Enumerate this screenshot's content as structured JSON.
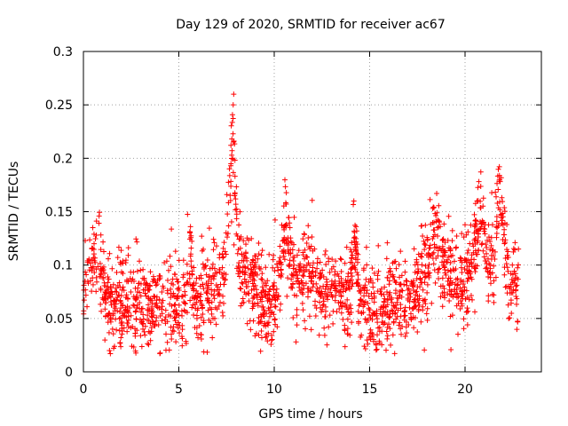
{
  "chart_data": {
    "type": "scatter",
    "title": "Day 129 of 2020, SRMTID for receiver ac67",
    "xlabel": "GPS time / hours",
    "ylabel": "SRMTID / TECUs",
    "xlim": [
      0,
      24
    ],
    "ylim": [
      0,
      0.3
    ],
    "x_ticks": [
      0,
      5,
      10,
      15,
      20
    ],
    "x_tick_labels": [
      "0",
      "5",
      "10",
      "15",
      "20"
    ],
    "y_ticks": [
      0,
      0.05,
      0.1,
      0.15,
      0.2,
      0.25,
      0.3
    ],
    "y_tick_labels": [
      "0",
      "0.05",
      "0.1",
      "0.15",
      "0.2",
      "0.25",
      "0.3"
    ],
    "grid": true,
    "marker": "+",
    "color": "#ff0000",
    "x_range_of_data": [
      0,
      22.8
    ],
    "point_count": 2100,
    "random_seed": 129,
    "baseline_levels": [
      [
        0.0,
        0.085
      ],
      [
        0.5,
        0.085
      ],
      [
        1.0,
        0.068
      ],
      [
        2.0,
        0.06
      ],
      [
        3.0,
        0.062
      ],
      [
        4.0,
        0.062
      ],
      [
        5.0,
        0.06
      ],
      [
        5.8,
        0.05
      ],
      [
        6.5,
        0.075
      ],
      [
        7.3,
        0.09
      ],
      [
        8.0,
        0.1
      ],
      [
        9.0,
        0.085
      ],
      [
        9.6,
        0.06
      ],
      [
        10.5,
        0.085
      ],
      [
        11.5,
        0.08
      ],
      [
        12.5,
        0.075
      ],
      [
        13.5,
        0.07
      ],
      [
        14.5,
        0.06
      ],
      [
        16.0,
        0.058
      ],
      [
        17.0,
        0.065
      ],
      [
        18.0,
        0.09
      ],
      [
        18.6,
        0.105
      ],
      [
        19.5,
        0.085
      ],
      [
        20.2,
        0.08
      ],
      [
        20.8,
        0.11
      ],
      [
        21.4,
        0.09
      ],
      [
        22.0,
        0.1
      ],
      [
        22.8,
        0.07
      ]
    ],
    "spread": 0.021,
    "peaks": [
      {
        "x": 0.8,
        "width": 0.3,
        "height": 0.04
      },
      {
        "x": 5.6,
        "width": 0.2,
        "height": 0.06
      },
      {
        "x": 7.8,
        "width": 0.25,
        "height": 0.13
      },
      {
        "x": 10.6,
        "width": 0.3,
        "height": 0.06
      },
      {
        "x": 11.8,
        "width": 0.3,
        "height": 0.03
      },
      {
        "x": 14.2,
        "width": 0.2,
        "height": 0.07
      },
      {
        "x": 18.4,
        "width": 0.3,
        "height": 0.035
      },
      {
        "x": 20.8,
        "width": 0.4,
        "height": 0.045
      },
      {
        "x": 21.8,
        "width": 0.25,
        "height": 0.09
      }
    ]
  }
}
